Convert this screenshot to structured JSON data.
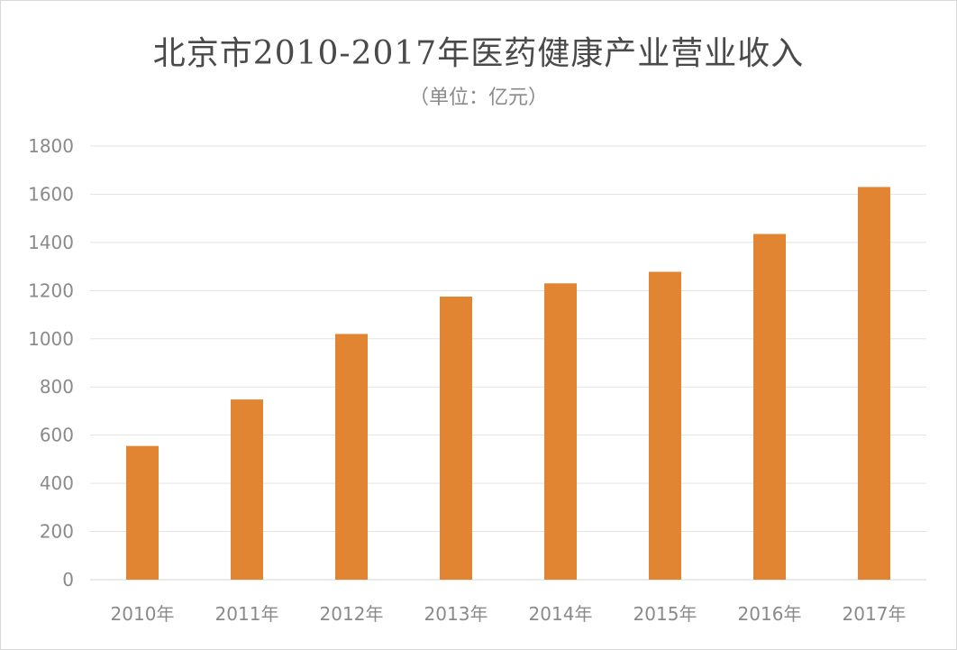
{
  "chart_data": {
    "type": "bar",
    "title": "北京市2010-2017年医药健康产业营业收入",
    "subtitle": "（单位：亿元）",
    "categories": [
      "2010年",
      "2011年",
      "2012年",
      "2013年",
      "2014年",
      "2015年",
      "2016年",
      "2017年"
    ],
    "values": [
      555,
      748,
      1020,
      1175,
      1230,
      1278,
      1435,
      1630
    ],
    "ylim": [
      0,
      1800
    ],
    "yticks": [
      "0",
      "200",
      "400",
      "600",
      "800",
      "1000",
      "1200",
      "1400",
      "1600",
      "1800"
    ],
    "grid": true,
    "legend": "none",
    "bar_color": "#E28532",
    "grid_color": "#e3e3e3",
    "text_color": "#8a8a8a"
  }
}
